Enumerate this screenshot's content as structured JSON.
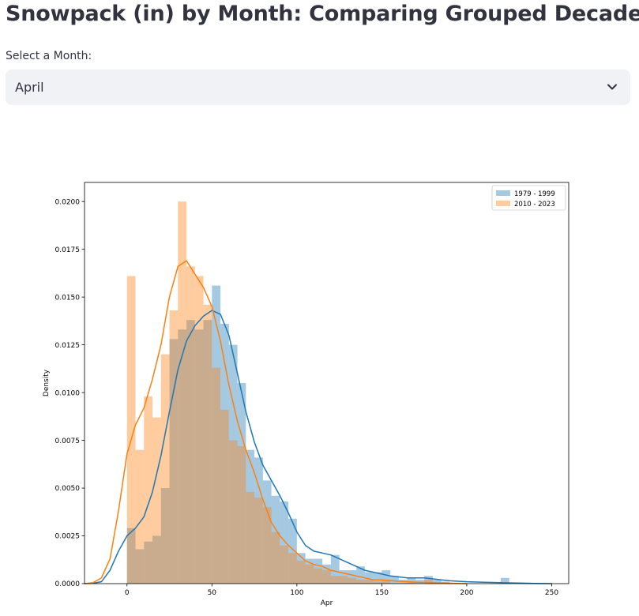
{
  "page": {
    "title": "Snowpack (in) by Month: Comparing Grouped Decades",
    "select_label": "Select a Month:",
    "select_value": "April"
  },
  "icons": {
    "select_toggle": "chevron-down-icon"
  },
  "colors": {
    "series1": "#1f77b4",
    "series2": "#ff7f0e",
    "select_bg": "#f0f2f6",
    "text": "#31333f"
  },
  "chart_data": {
    "type": "histogram+kde",
    "xlabel": "Apr",
    "ylabel": "Density",
    "xlim": [
      -25,
      260
    ],
    "ylim": [
      0,
      0.021
    ],
    "xticks": [
      "0",
      "50",
      "100",
      "150",
      "200",
      "250"
    ],
    "yticks": [
      "0.0000",
      "0.0025",
      "0.0050",
      "0.0075",
      "0.0100",
      "0.0125",
      "0.0150",
      "0.0175",
      "0.0200"
    ],
    "legend_position": "top-right",
    "grid": false,
    "series": [
      {
        "name": "1979 - 1999",
        "color": "#1f77b4",
        "alpha": 0.4,
        "bins": [
          {
            "x0": 0,
            "x1": 5,
            "y": 0.0029
          },
          {
            "x0": 5,
            "x1": 10,
            "y": 0.0018
          },
          {
            "x0": 10,
            "x1": 15,
            "y": 0.0022
          },
          {
            "x0": 15,
            "x1": 20,
            "y": 0.0025
          },
          {
            "x0": 20,
            "x1": 25,
            "y": 0.005
          },
          {
            "x0": 25,
            "x1": 30,
            "y": 0.0128
          },
          {
            "x0": 30,
            "x1": 35,
            "y": 0.0133
          },
          {
            "x0": 35,
            "x1": 40,
            "y": 0.0138
          },
          {
            "x0": 40,
            "x1": 45,
            "y": 0.0133
          },
          {
            "x0": 45,
            "x1": 50,
            "y": 0.0138
          },
          {
            "x0": 50,
            "x1": 55,
            "y": 0.0156
          },
          {
            "x0": 55,
            "x1": 60,
            "y": 0.0136
          },
          {
            "x0": 60,
            "x1": 65,
            "y": 0.0125
          },
          {
            "x0": 65,
            "x1": 70,
            "y": 0.0105
          },
          {
            "x0": 70,
            "x1": 75,
            "y": 0.007
          },
          {
            "x0": 75,
            "x1": 80,
            "y": 0.0066
          },
          {
            "x0": 80,
            "x1": 85,
            "y": 0.0054
          },
          {
            "x0": 85,
            "x1": 90,
            "y": 0.0046
          },
          {
            "x0": 90,
            "x1": 95,
            "y": 0.0043
          },
          {
            "x0": 95,
            "x1": 100,
            "y": 0.0034
          },
          {
            "x0": 100,
            "x1": 105,
            "y": 0.0016
          },
          {
            "x0": 105,
            "x1": 110,
            "y": 0.0013
          },
          {
            "x0": 110,
            "x1": 115,
            "y": 0.0013
          },
          {
            "x0": 115,
            "x1": 120,
            "y": 0.001
          },
          {
            "x0": 120,
            "x1": 125,
            "y": 0.0015
          },
          {
            "x0": 125,
            "x1": 130,
            "y": 0.0007
          },
          {
            "x0": 130,
            "x1": 135,
            "y": 0.0007
          },
          {
            "x0": 135,
            "x1": 140,
            "y": 0.0009
          },
          {
            "x0": 140,
            "x1": 145,
            "y": 0.0006
          },
          {
            "x0": 145,
            "x1": 150,
            "y": 0.0006
          },
          {
            "x0": 150,
            "x1": 155,
            "y": 0.0007
          },
          {
            "x0": 155,
            "x1": 160,
            "y": 0.0004
          },
          {
            "x0": 160,
            "x1": 165,
            "y": 0.0002
          },
          {
            "x0": 165,
            "x1": 170,
            "y": 0.0003
          },
          {
            "x0": 170,
            "x1": 175,
            "y": 0.0002
          },
          {
            "x0": 175,
            "x1": 180,
            "y": 0.0004
          },
          {
            "x0": 180,
            "x1": 185,
            "y": 0.0002
          },
          {
            "x0": 185,
            "x1": 190,
            "y": 0.0001
          },
          {
            "x0": 220,
            "x1": 225,
            "y": 0.0003
          }
        ],
        "kde": [
          [
            -25,
            0.0
          ],
          [
            -20,
            2e-05
          ],
          [
            -15,
            0.0001
          ],
          [
            -10,
            0.0007
          ],
          [
            -5,
            0.0017
          ],
          [
            0,
            0.0025
          ],
          [
            5,
            0.0029
          ],
          [
            10,
            0.0035
          ],
          [
            15,
            0.0048
          ],
          [
            20,
            0.0067
          ],
          [
            25,
            0.009
          ],
          [
            30,
            0.0112
          ],
          [
            35,
            0.0127
          ],
          [
            40,
            0.0135
          ],
          [
            45,
            0.014
          ],
          [
            50,
            0.0143
          ],
          [
            55,
            0.0141
          ],
          [
            60,
            0.013
          ],
          [
            65,
            0.011
          ],
          [
            70,
            0.009
          ],
          [
            75,
            0.0074
          ],
          [
            80,
            0.0062
          ],
          [
            85,
            0.0054
          ],
          [
            90,
            0.0046
          ],
          [
            95,
            0.0037
          ],
          [
            100,
            0.0027
          ],
          [
            105,
            0.002
          ],
          [
            110,
            0.0017
          ],
          [
            115,
            0.0016
          ],
          [
            120,
            0.0015
          ],
          [
            125,
            0.0013
          ],
          [
            130,
            0.0011
          ],
          [
            135,
            0.0009
          ],
          [
            140,
            0.0007
          ],
          [
            145,
            0.0006
          ],
          [
            150,
            0.0005
          ],
          [
            155,
            0.0004
          ],
          [
            160,
            0.00035
          ],
          [
            165,
            0.0003
          ],
          [
            170,
            0.0003
          ],
          [
            175,
            0.0003
          ],
          [
            180,
            0.00025
          ],
          [
            185,
            0.0002
          ],
          [
            190,
            0.00015
          ],
          [
            200,
            0.0001
          ],
          [
            210,
            7e-05
          ],
          [
            220,
            5e-05
          ],
          [
            230,
            3e-05
          ],
          [
            240,
            1e-05
          ],
          [
            250,
            0.0
          ]
        ]
      },
      {
        "name": "2010 - 2023",
        "color": "#ff7f0e",
        "alpha": 0.4,
        "bins": [
          {
            "x0": 0,
            "x1": 5,
            "y": 0.0161
          },
          {
            "x0": 5,
            "x1": 10,
            "y": 0.007
          },
          {
            "x0": 10,
            "x1": 15,
            "y": 0.0098
          },
          {
            "x0": 15,
            "x1": 20,
            "y": 0.0087
          },
          {
            "x0": 20,
            "x1": 25,
            "y": 0.012
          },
          {
            "x0": 25,
            "x1": 30,
            "y": 0.0143
          },
          {
            "x0": 30,
            "x1": 35,
            "y": 0.02
          },
          {
            "x0": 35,
            "x1": 40,
            "y": 0.0166
          },
          {
            "x0": 40,
            "x1": 45,
            "y": 0.0161
          },
          {
            "x0": 45,
            "x1": 50,
            "y": 0.0146
          },
          {
            "x0": 50,
            "x1": 55,
            "y": 0.0113
          },
          {
            "x0": 55,
            "x1": 60,
            "y": 0.0091
          },
          {
            "x0": 60,
            "x1": 65,
            "y": 0.0075
          },
          {
            "x0": 65,
            "x1": 70,
            "y": 0.0072
          },
          {
            "x0": 70,
            "x1": 75,
            "y": 0.0048
          },
          {
            "x0": 75,
            "x1": 80,
            "y": 0.0045
          },
          {
            "x0": 80,
            "x1": 85,
            "y": 0.004
          },
          {
            "x0": 85,
            "x1": 90,
            "y": 0.0027
          },
          {
            "x0": 90,
            "x1": 95,
            "y": 0.002
          },
          {
            "x0": 95,
            "x1": 100,
            "y": 0.0016
          },
          {
            "x0": 100,
            "x1": 105,
            "y": 0.0012
          },
          {
            "x0": 105,
            "x1": 110,
            "y": 0.001
          },
          {
            "x0": 110,
            "x1": 115,
            "y": 0.0008
          },
          {
            "x0": 115,
            "x1": 120,
            "y": 0.0007
          },
          {
            "x0": 120,
            "x1": 125,
            "y": 0.0004
          },
          {
            "x0": 125,
            "x1": 130,
            "y": 0.0004
          },
          {
            "x0": 130,
            "x1": 135,
            "y": 0.0003
          },
          {
            "x0": 135,
            "x1": 140,
            "y": 0.0002
          },
          {
            "x0": 140,
            "x1": 145,
            "y": 0.0002
          },
          {
            "x0": 145,
            "x1": 150,
            "y": 0.0001
          },
          {
            "x0": 150,
            "x1": 155,
            "y": 0.0002
          },
          {
            "x0": 165,
            "x1": 170,
            "y": 0.0001
          },
          {
            "x0": 175,
            "x1": 180,
            "y": 0.0002
          }
        ],
        "kde": [
          [
            -25,
            0.0
          ],
          [
            -20,
            5e-05
          ],
          [
            -15,
            0.0003
          ],
          [
            -10,
            0.0013
          ],
          [
            -5,
            0.0038
          ],
          [
            0,
            0.0068
          ],
          [
            5,
            0.0083
          ],
          [
            10,
            0.0092
          ],
          [
            15,
            0.0107
          ],
          [
            20,
            0.0125
          ],
          [
            25,
            0.015
          ],
          [
            30,
            0.0166
          ],
          [
            35,
            0.0169
          ],
          [
            40,
            0.0162
          ],
          [
            45,
            0.0155
          ],
          [
            50,
            0.0145
          ],
          [
            55,
            0.0127
          ],
          [
            60,
            0.0104
          ],
          [
            65,
            0.0085
          ],
          [
            70,
            0.007
          ],
          [
            75,
            0.0058
          ],
          [
            80,
            0.0044
          ],
          [
            85,
            0.0032
          ],
          [
            90,
            0.0025
          ],
          [
            95,
            0.002
          ],
          [
            100,
            0.0016
          ],
          [
            105,
            0.0012
          ],
          [
            110,
            0.001
          ],
          [
            115,
            0.0009
          ],
          [
            120,
            0.0007
          ],
          [
            125,
            0.0006
          ],
          [
            130,
            0.0005
          ],
          [
            135,
            0.0004
          ],
          [
            140,
            0.0003
          ],
          [
            145,
            0.0002
          ],
          [
            150,
            0.0002
          ],
          [
            160,
            0.00012
          ],
          [
            170,
            8e-05
          ],
          [
            180,
            5e-05
          ],
          [
            190,
            2e-05
          ],
          [
            200,
            0.0
          ]
        ]
      }
    ]
  }
}
